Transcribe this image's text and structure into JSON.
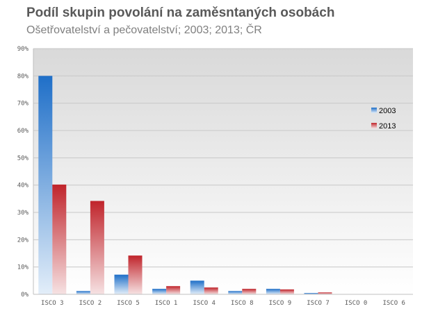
{
  "chart_data": {
    "type": "bar",
    "title": "Podíl skupin povolání na zaměsntaných osobách",
    "subtitle": "Ošetřovatelství a pečovatelství; 2003; 2013; ČR",
    "categories": [
      "ISCO 3",
      "ISCO 2",
      "ISCO 5",
      "ISCO 1",
      "ISCO 4",
      "ISCO 8",
      "ISCO 9",
      "ISCO 7",
      "ISCO 0",
      "ISCO 6"
    ],
    "series": [
      {
        "name": "2003",
        "values": [
          80,
          1.2,
          7.2,
          2.0,
          5.0,
          1.2,
          2.0,
          0.5,
          0,
          0
        ]
      },
      {
        "name": "2013",
        "values": [
          40.2,
          34.2,
          14.2,
          3.0,
          2.5,
          2.0,
          1.8,
          0.7,
          0,
          0
        ]
      }
    ],
    "y_ticks": [
      "0%",
      "10%",
      "20%",
      "30%",
      "40%",
      "50%",
      "60%",
      "70%",
      "80%",
      "90%"
    ],
    "ylim": [
      0,
      90
    ],
    "xlabel": "",
    "ylabel": "",
    "grid": true,
    "legend_position": "right",
    "colors": {
      "2003": "#1f6fc8",
      "2013": "#c0242b"
    }
  }
}
